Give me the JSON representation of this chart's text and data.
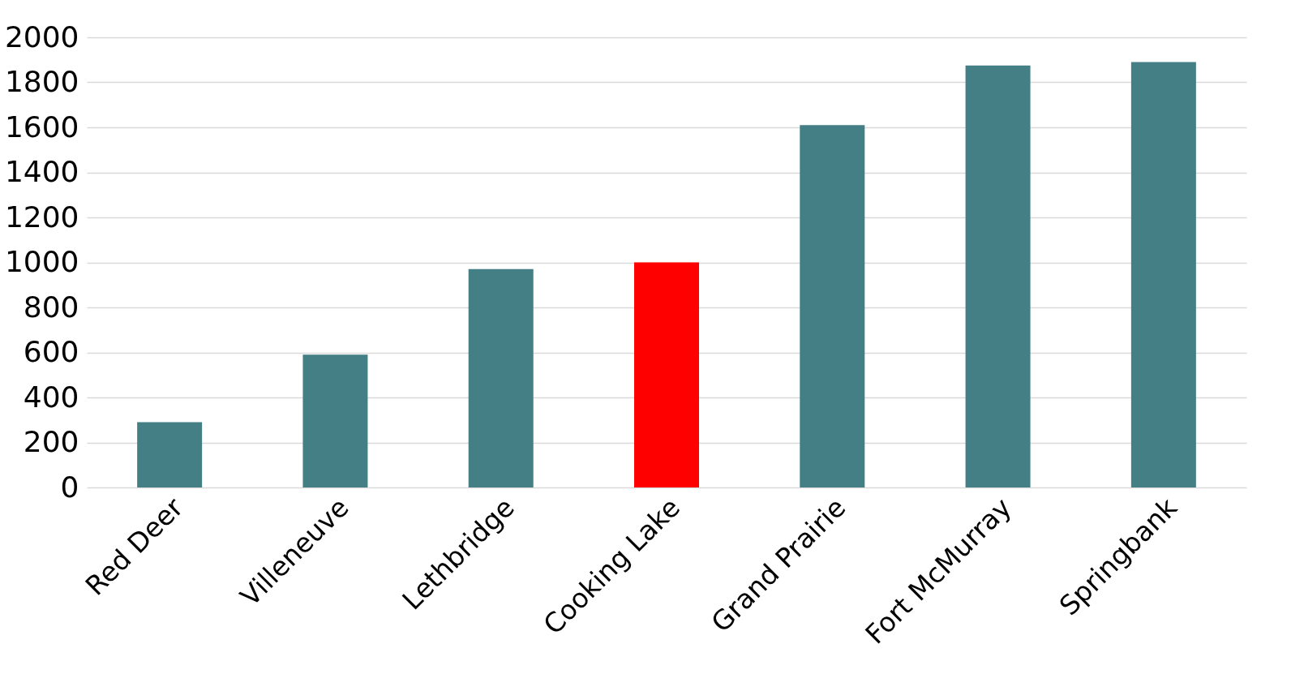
{
  "chart_data": {
    "type": "bar",
    "categories": [
      "Red Deer",
      "Villeneuve",
      "Lethbridge",
      "Cooking Lake",
      "Grand Prairie",
      "Fort McMurray",
      "Springbank"
    ],
    "values": [
      290,
      590,
      970,
      1000,
      1610,
      1875,
      1890
    ],
    "colors": [
      "#447f86",
      "#447f86",
      "#447f86",
      "#ff0000",
      "#447f86",
      "#447f86",
      "#447f86"
    ],
    "ylim": [
      0,
      2000
    ],
    "yticks": [
      0,
      200,
      400,
      600,
      800,
      1000,
      1200,
      1400,
      1600,
      1800,
      2000
    ],
    "grid": "y"
  }
}
